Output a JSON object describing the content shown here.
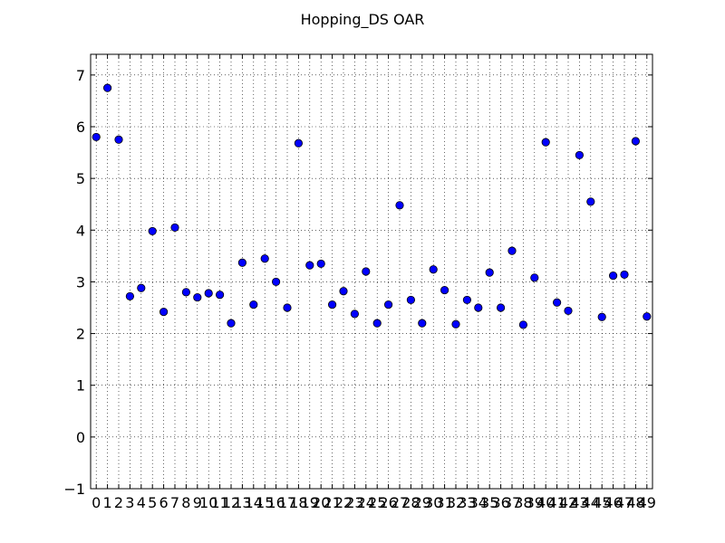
{
  "chart_data": {
    "type": "scatter",
    "title": "Hopping_DS OAR",
    "xlabel": "",
    "ylabel": "",
    "x": [
      0,
      1,
      2,
      3,
      4,
      5,
      6,
      7,
      8,
      9,
      10,
      11,
      12,
      13,
      14,
      15,
      16,
      17,
      18,
      19,
      20,
      21,
      22,
      23,
      24,
      25,
      26,
      27,
      28,
      29,
      30,
      31,
      32,
      33,
      34,
      35,
      36,
      37,
      38,
      39,
      40,
      41,
      42,
      43,
      44,
      45,
      46,
      47,
      48,
      49
    ],
    "x_tick_labels": [
      "0",
      "1",
      "2",
      "3",
      "4",
      "5",
      "6",
      "7",
      "8",
      "9",
      "10",
      "11",
      "12",
      "13",
      "14",
      "15",
      "16",
      "17",
      "18",
      "19",
      "20",
      "21",
      "22",
      "23",
      "24",
      "25",
      "26",
      "27",
      "28",
      "29",
      "30",
      "31",
      "32",
      "33",
      "34",
      "35",
      "36",
      "37",
      "38",
      "39",
      "40",
      "41",
      "42",
      "43",
      "44",
      "45",
      "46",
      "47",
      "48",
      "49"
    ],
    "y": [
      5.8,
      6.75,
      5.75,
      2.72,
      2.88,
      3.98,
      2.42,
      4.05,
      2.8,
      2.7,
      2.78,
      2.75,
      2.2,
      3.37,
      2.56,
      3.45,
      3.0,
      2.5,
      5.68,
      3.32,
      3.35,
      2.56,
      2.82,
      2.38,
      3.2,
      2.2,
      2.56,
      4.48,
      2.65,
      2.2,
      3.24,
      2.84,
      2.18,
      2.65,
      2.5,
      3.18,
      2.5,
      3.6,
      2.17,
      3.08,
      5.7,
      2.6,
      2.44,
      5.45,
      4.55,
      2.32,
      3.12,
      3.14,
      5.72,
      2.33
    ],
    "xlim": [
      -0.5,
      49.5
    ],
    "ylim": [
      -1,
      7.4
    ],
    "y_ticks": [
      -1,
      0,
      1,
      2,
      3,
      4,
      5,
      6,
      7
    ],
    "y_tick_labels": [
      "−1",
      "0",
      "1",
      "2",
      "3",
      "4",
      "5",
      "6",
      "7"
    ],
    "grid": true,
    "marker_color": "#0000ff",
    "marker_edge_color": "#000000"
  }
}
